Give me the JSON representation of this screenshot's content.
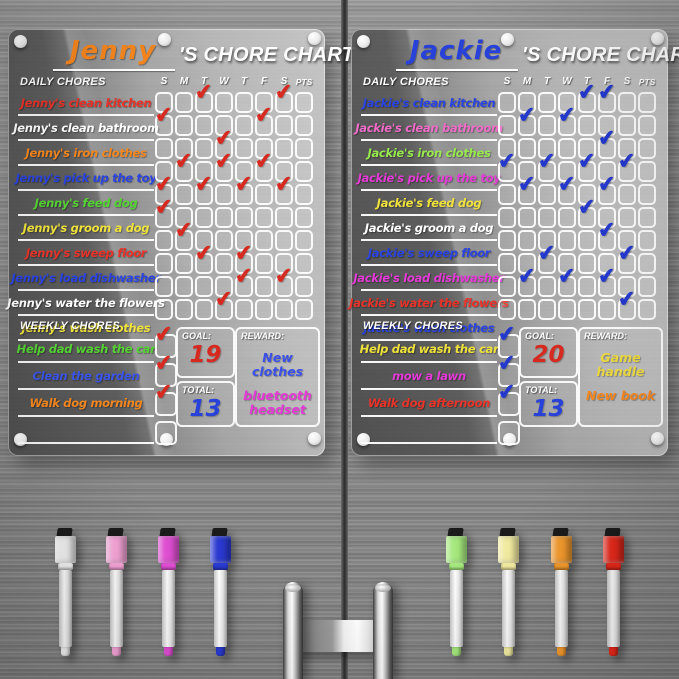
{
  "charts": [
    {
      "name": "Jenny",
      "name_color": "#f5851d",
      "title_suffix": "'S CHORE CHART",
      "daily_header": "DAILY CHORES",
      "weekly_header": "WEEKLY CHORES",
      "day_columns": [
        "S",
        "M",
        "T",
        "W",
        "T",
        "F",
        "S",
        "PTS"
      ],
      "check_color": "#d62a20",
      "daily_rows": [
        {
          "label": "Jenny's clean kitchen",
          "color": "#e8332a",
          "checks": [
            3,
            7
          ]
        },
        {
          "label": "Jenny's clean bathroom",
          "color": "#ffffff",
          "checks": [
            1,
            6
          ]
        },
        {
          "label": "Jenny's iron clothes",
          "color": "#f5871f",
          "checks": [
            4
          ]
        },
        {
          "label": "Jenny's pick up the toy",
          "color": "#2b44e0",
          "checks": [
            2,
            4,
            6
          ]
        },
        {
          "label": "Jenny's feed dog",
          "color": "#55d334",
          "checks": [
            1,
            3,
            5,
            7
          ]
        },
        {
          "label": "Jenny's groom a dog",
          "color": "#efe23c",
          "checks": [
            1
          ]
        },
        {
          "label": "Jenny's sweep floor",
          "color": "#e8332a",
          "checks": [
            2
          ]
        },
        {
          "label": "Jenny's load dishwasher",
          "color": "#2b44e0",
          "checks": [
            3,
            5
          ]
        },
        {
          "label": "Jenny's water the flowers",
          "color": "#ffffff",
          "checks": [
            5,
            7
          ]
        },
        {
          "label": "Jenny's wash clothes",
          "color": "#efe23c",
          "checks": [
            4
          ]
        }
      ],
      "weekly_rows": [
        {
          "label": "Help dad wash the car",
          "color": "#55d334",
          "checked": true
        },
        {
          "label": "Clean the garden",
          "color": "#3b55e8",
          "checked": true
        },
        {
          "label": "Walk dog morning",
          "color": "#f5871f",
          "checked": true
        },
        {
          "label": "",
          "color": "#ffffff",
          "checked": false
        }
      ],
      "goal_label": "GOAL:",
      "goal_value": "19",
      "goal_color": "#d62a20",
      "total_label": "TOTAL:",
      "total_value": "13",
      "total_color": "#2841d8",
      "reward_label": "REWARD:",
      "rewards": [
        {
          "text": "New clothes",
          "color": "#3a50e8"
        },
        {
          "text": "bluetooth headset",
          "color": "#e43ad6"
        }
      ]
    },
    {
      "name": "Jackie",
      "name_color": "#2841d8",
      "title_suffix": "'S CHORE CHART",
      "daily_header": "DAILY CHORES",
      "weekly_header": "WEEKLY CHORES",
      "day_columns": [
        "S",
        "M",
        "T",
        "W",
        "T",
        "F",
        "S",
        "PTS"
      ],
      "check_color": "#2438cc",
      "daily_rows": [
        {
          "label": "Jackie's clean kitchen",
          "color": "#2b44e0",
          "checks": [
            5,
            6
          ]
        },
        {
          "label": "Jackie's clean bathroom",
          "color": "#f06cc8",
          "checks": [
            2,
            4
          ]
        },
        {
          "label": "Jackie's iron clothes",
          "color": "#97e94e",
          "checks": [
            6
          ]
        },
        {
          "label": "Jackie's pick up the toy",
          "color": "#e43ad6",
          "checks": [
            1,
            3,
            5,
            7
          ]
        },
        {
          "label": "Jackie's feed dog",
          "color": "#efe23c",
          "checks": [
            2,
            4,
            6
          ]
        },
        {
          "label": "Jackie's groom a dog",
          "color": "#ffffff",
          "checks": [
            5
          ]
        },
        {
          "label": "Jackie's sweep floor",
          "color": "#2b44e0",
          "checks": [
            6
          ]
        },
        {
          "label": "Jackie's load dishwasher",
          "color": "#e43ad6",
          "checks": [
            3,
            7
          ]
        },
        {
          "label": "Jackie's water the flowers",
          "color": "#e8332a",
          "checks": [
            2,
            4,
            6
          ]
        },
        {
          "label": "Jackie's wash clothes",
          "color": "#2b44e0",
          "checks": [
            7
          ]
        }
      ],
      "weekly_rows": [
        {
          "label": "Help dad wash the car",
          "color": "#efe23c",
          "checked": true
        },
        {
          "label": "mow a lawn",
          "color": "#e43ad6",
          "checked": true
        },
        {
          "label": "Walk dog afternoon",
          "color": "#e8332a",
          "checked": true
        },
        {
          "label": "",
          "color": "#ffffff",
          "checked": false
        }
      ],
      "goal_label": "GOAL:",
      "goal_value": "20",
      "goal_color": "#d62a20",
      "total_label": "TOTAL:",
      "total_value": "13",
      "total_color": "#2841d8",
      "reward_label": "REWARD:",
      "rewards": [
        {
          "text": "Game handle",
          "color": "#ecda3e"
        },
        {
          "text": "New book",
          "color": "#f5871f"
        }
      ]
    }
  ],
  "markers": [
    {
      "name": "white",
      "color": "#f2f2f2",
      "group": "left"
    },
    {
      "name": "pink",
      "color": "#f7a6d9",
      "group": "left"
    },
    {
      "name": "magenta",
      "color": "#e14fd4",
      "group": "left"
    },
    {
      "name": "blue",
      "color": "#2a3ad0",
      "group": "left"
    },
    {
      "name": "green",
      "color": "#a5e87d",
      "group": "right"
    },
    {
      "name": "yellow",
      "color": "#f3eda2",
      "group": "right"
    },
    {
      "name": "orange",
      "color": "#f49b2e",
      "group": "right"
    },
    {
      "name": "red",
      "color": "#e8291c",
      "group": "right"
    }
  ]
}
